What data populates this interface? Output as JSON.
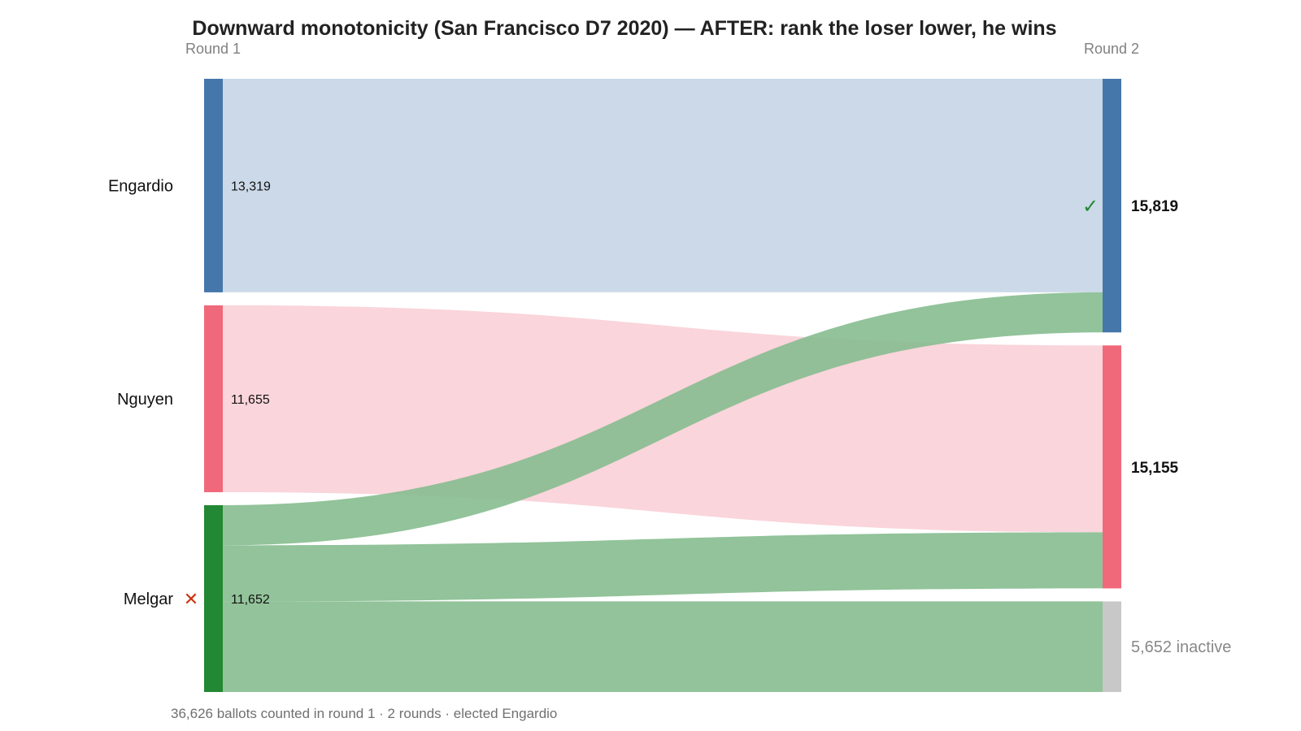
{
  "chart_data": {
    "type": "sankey",
    "title": "Downward monotonicity (San Francisco D7 2020) — AFTER: rank the loser lower, he wins",
    "round_labels": [
      "Round 1",
      "Round 2"
    ],
    "round1": [
      {
        "name": "Engardio",
        "votes": 13319,
        "votes_label": "13,319",
        "color": "#4577ab",
        "status": ""
      },
      {
        "name": "Nguyen",
        "votes": 11655,
        "votes_label": "11,655",
        "color": "#f0697a",
        "status": ""
      },
      {
        "name": "Melgar",
        "votes": 11652,
        "votes_label": "11,652",
        "color": "#228833",
        "status": "eliminated"
      }
    ],
    "round2": [
      {
        "name": "Engardio",
        "votes": 15819,
        "votes_label": "15,819",
        "color": "#4577ab",
        "status": "elected"
      },
      {
        "name": "Nguyen",
        "votes": 15155,
        "votes_label": "15,155",
        "color": "#f0697a",
        "status": ""
      },
      {
        "name": "inactive",
        "votes": 5652,
        "votes_label": "5,652 inactive",
        "color": "#c8c8c8",
        "status": ""
      }
    ],
    "flows": [
      {
        "from": "Engardio",
        "to": "Engardio",
        "value": 13319,
        "color": "#c5d5e5"
      },
      {
        "from": "Nguyen",
        "to": "Nguyen",
        "value": 11655,
        "color": "#f9d0d7"
      },
      {
        "from": "Melgar",
        "to": "Engardio",
        "value": 2500,
        "color": "#86bd8f"
      },
      {
        "from": "Melgar",
        "to": "Nguyen",
        "value": 3500,
        "color": "#86bd8f"
      },
      {
        "from": "Melgar",
        "to": "inactive",
        "value": 5652,
        "color": "#86bd8f"
      }
    ],
    "elected_mark": "✓",
    "eliminated_mark": "✕",
    "elected_color": "#228833",
    "eliminated_color": "#cc3311",
    "footer": "36,626 ballots counted in round 1 · 2 rounds · elected Engardio"
  }
}
